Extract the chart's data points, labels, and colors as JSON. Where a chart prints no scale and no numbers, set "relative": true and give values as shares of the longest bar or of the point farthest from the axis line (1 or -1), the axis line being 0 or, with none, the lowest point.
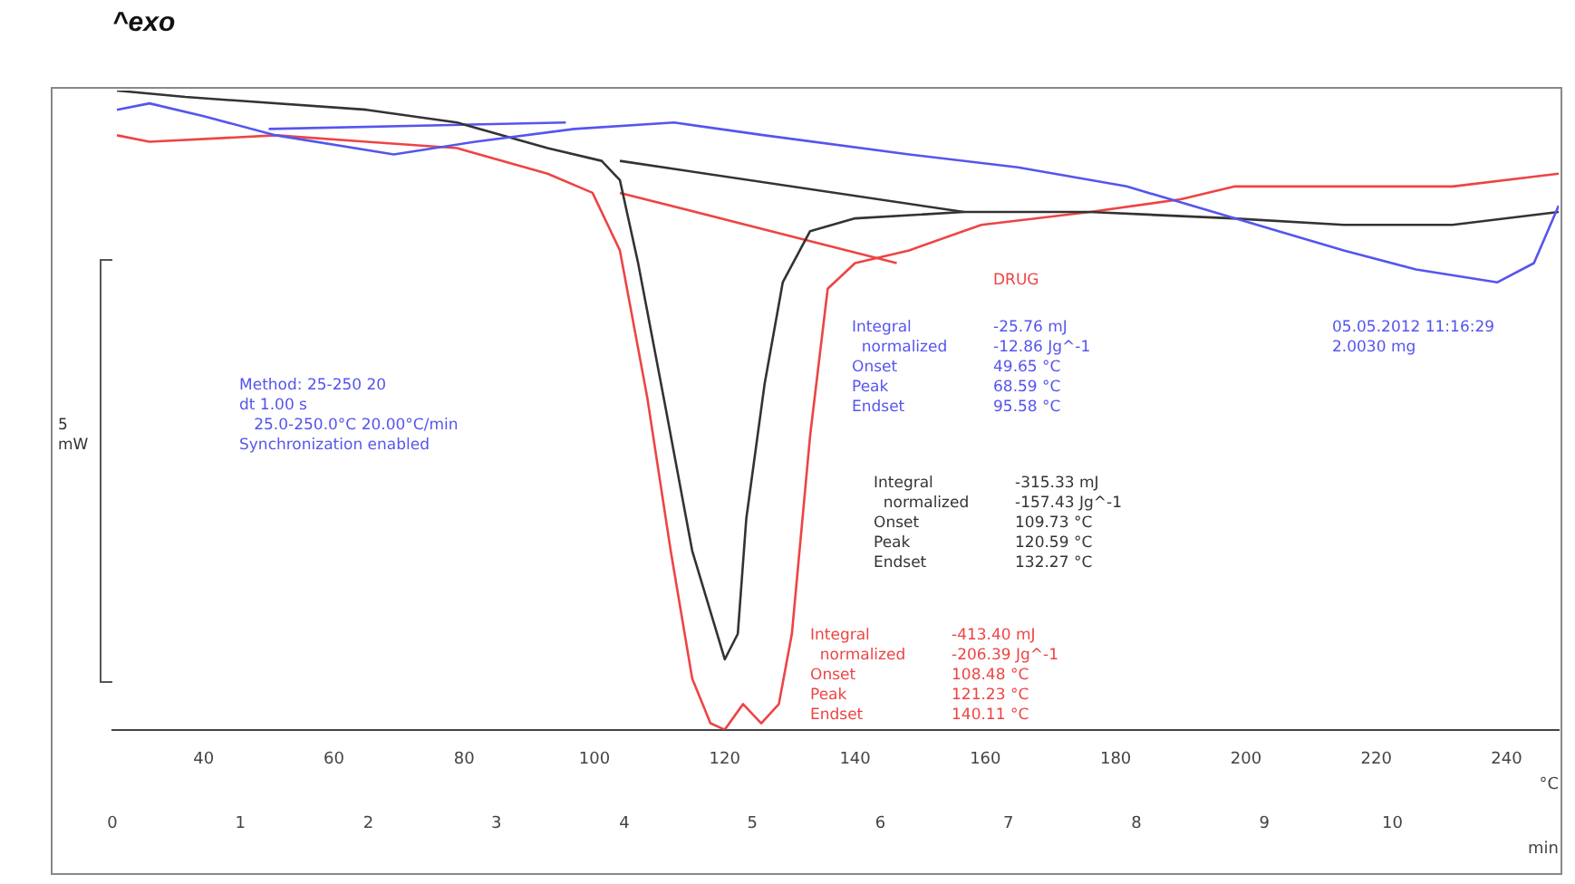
{
  "chart_data": {
    "type": "line",
    "title": "^exo",
    "xlabel": "°C",
    "x2label": "min",
    "relative": true,
    "xlim": [
      26,
      248
    ],
    "xticks": [
      40,
      60,
      80,
      100,
      120,
      140,
      160,
      180,
      200,
      220,
      240
    ],
    "x2lim": [
      0,
      11.3
    ],
    "x2ticks": [
      0,
      1,
      2,
      3,
      4,
      5,
      6,
      7,
      8,
      9,
      10
    ],
    "grid": false,
    "legend": false,
    "marker": "none",
    "line_style": "solid",
    "series": [
      {
        "color": "#5555ee",
        "x": [
          26.7,
          31.7,
          40,
          51.1,
          69.2,
          81.7,
          96.9,
          112.2,
          126.1,
          148.3,
          165,
          181.7,
          198.3,
          215,
          226.1,
          238.6,
          244.2,
          248
        ],
        "values": [
          0.97,
          0.98,
          0.96,
          0.93,
          0.9,
          0.92,
          0.94,
          0.95,
          0.93,
          0.9,
          0.88,
          0.85,
          0.8,
          0.75,
          0.72,
          0.7,
          0.73,
          0.82
        ]
      },
      {
        "color": "#333333",
        "x": [
          26.7,
          37.2,
          65,
          78.9,
          92.8,
          101.1,
          103.9,
          106.7,
          110.8,
          115,
          120,
          122,
          123.3,
          126.1,
          128.9,
          133.1,
          140,
          156.7,
          176,
          198,
          215,
          231.7,
          248
        ],
        "values": [
          1,
          0.99,
          0.97,
          0.95,
          0.91,
          0.89,
          0.86,
          0.73,
          0.51,
          0.28,
          0.11,
          0.15,
          0.33,
          0.54,
          0.7,
          0.78,
          0.8,
          0.81,
          0.81,
          0.8,
          0.79,
          0.79,
          0.81
        ]
      },
      {
        "color": "#ee4444",
        "x": [
          26.7,
          31.7,
          51.1,
          65,
          78.9,
          92.8,
          99.7,
          103.9,
          108.1,
          111.7,
          115,
          117.8,
          120,
          122.8,
          125.6,
          128.3,
          130.3,
          133.1,
          135.8,
          140,
          148.3,
          159.4,
          176.1,
          190,
          198.3,
          203.9,
          231.7,
          248
        ],
        "values": [
          0.93,
          0.92,
          0.93,
          0.92,
          0.91,
          0.87,
          0.84,
          0.75,
          0.52,
          0.28,
          0.08,
          0.01,
          0,
          0.04,
          0.01,
          0.04,
          0.15,
          0.46,
          0.69,
          0.73,
          0.75,
          0.79,
          0.81,
          0.83,
          0.85,
          0.85,
          0.85,
          0.87
        ]
      },
      {
        "color": "#5555ee",
        "x": [
          50,
          95.6
        ],
        "values": [
          0.94,
          0.95
        ]
      },
      {
        "color": "#333333",
        "x": [
          103.9,
          156.7
        ],
        "values": [
          0.89,
          0.81
        ]
      },
      {
        "color": "#ee4444",
        "x": [
          103.9,
          146.4
        ],
        "values": [
          0.84,
          0.73
        ]
      }
    ],
    "annotations": [
      "Method: 25-250 20\ndt 1.00 s\n   25.0-250.0°C 20.00°C/min\nSynchronization enabled",
      "DRUG",
      "Integral\t-25.76 mJ\n  normalized\t-12.86 Jg^-1\nOnset\t49.65 °C\nPeak\t68.59 °C\nEndset\t95.58 °C",
      "05.05.2012 11:16:29\n2.0030 mg",
      "Integral\t-315.33 mJ\n  normalized\t-157.43 Jg^-1\nOnset\t109.73 °C\nPeak\t120.59 °C\nEndset\t132.27 °C",
      "Integral\t-413.40 mJ\n  normalized\t-206.39 Jg^-1\nOnset\t108.48 °C\nPeak\t121.23 °C\nEndset\t140.11 °C",
      "5\nmW"
    ]
  }
}
